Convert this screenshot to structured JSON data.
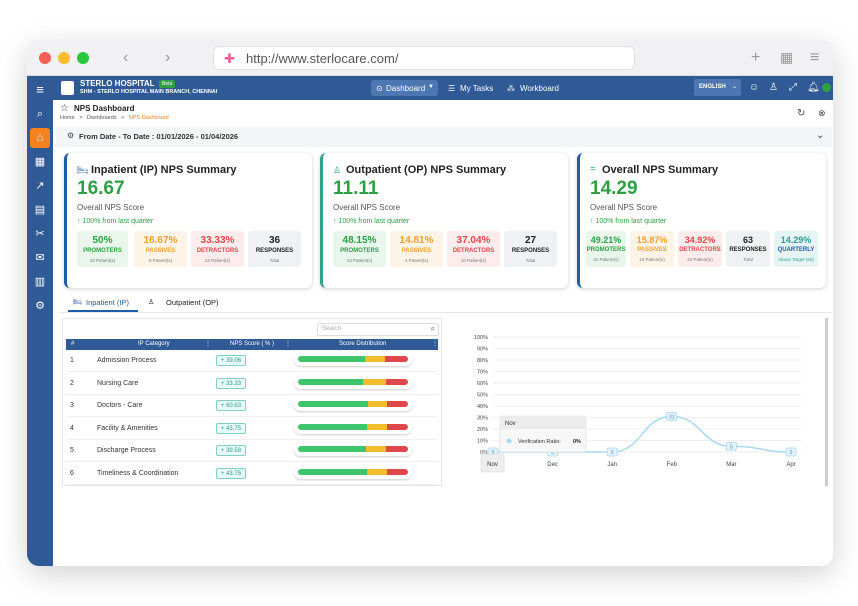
{
  "browser": {
    "url": "http://www.sterlocare.com/"
  },
  "header": {
    "hospital_name": "STERLO HOSPITAL",
    "badge": "Beta",
    "branch": "SHM - STERLO HOSPITAL MAIN BRANCH, CHENNAI",
    "nav": {
      "dashboard": "Dashboard",
      "tasks": "My Tasks",
      "workboard": "Workboard"
    },
    "language": "ENGLISH"
  },
  "page": {
    "title": "NPS Dashboard",
    "breadcrumb": {
      "home": "Home",
      "sep1": ">",
      "dashboards": "Dashboards",
      "sep2": ">",
      "current": "NPS Dashboard"
    },
    "date_filter": "From Date - To Date : 01/01/2026 - 01/04/2026"
  },
  "cards": [
    {
      "title": "Inpatient (IP) NPS Summary",
      "score": "16.67",
      "sub": "Overall NPS Score",
      "change": "↑ 100% from last quarter",
      "promoters": {
        "value": "50%",
        "label": "PROMOTERS",
        "patients": "18 Patient(s)"
      },
      "passives": {
        "value": "16.67%",
        "label": "PASSIVES",
        "patients": "6 Patient(s)"
      },
      "detractors": {
        "value": "33.33%",
        "label": "DETRACTORS",
        "patients": "12 Patient(s)"
      },
      "responses": {
        "value": "36",
        "label": "RESPONSES",
        "patients": "Total"
      }
    },
    {
      "title": "Outpatient (OP) NPS Summary",
      "score": "11.11",
      "sub": "Overall NPS Score",
      "change": "↑ 100% from last quarter",
      "promoters": {
        "value": "48.15%",
        "label": "PROMOTERS",
        "patients": "13 Patient(s)"
      },
      "passives": {
        "value": "14.81%",
        "label": "PASSIVES",
        "patients": "4 Patient(s)"
      },
      "detractors": {
        "value": "37.04%",
        "label": "DETRACTORS",
        "patients": "10 Patient(s)"
      },
      "responses": {
        "value": "27",
        "label": "RESPONSES",
        "patients": "Total"
      }
    },
    {
      "title": "Overall NPS Summary",
      "score": "14.29",
      "sub": "Overall NPS Score",
      "change": "↑ 100% from last quarter",
      "promoters": {
        "value": "49.21%",
        "label": "PROMOTERS",
        "patients": "31 Patient(s)"
      },
      "passives": {
        "value": "15.87%",
        "label": "PASSIVES",
        "patients": "10 Patient(s)"
      },
      "detractors": {
        "value": "34.92%",
        "label": "DETRACTORS",
        "patients": "22 Patient(s)"
      },
      "responses": {
        "value": "63",
        "label": "RESPONSES",
        "patients": "Total"
      },
      "target": {
        "value": "14.29%",
        "label": "QUARTERLY",
        "note": "Above Target (60)"
      }
    }
  ],
  "tabs": {
    "ip": "Inpatient (IP)",
    "op": "Outpatient (OP)"
  },
  "table": {
    "search_placeholder": "Search",
    "headers": {
      "num": "#",
      "category": "IP Category",
      "score": "NPS Score ( % )",
      "dist": "Score Distribution"
    },
    "rows": [
      {
        "num": "1",
        "category": "Admission Process",
        "score": "+ 39.06",
        "promoters": 52,
        "passives": 16,
        "detractors": 18
      },
      {
        "num": "2",
        "category": "Nursing Care",
        "score": "+ 33.33",
        "promoters": 50,
        "passives": 17,
        "detractors": 17
      },
      {
        "num": "3",
        "category": "Doctors - Care",
        "score": "+ 60.63",
        "promoters": 58,
        "passives": 16,
        "detractors": 17
      },
      {
        "num": "4",
        "category": "Facility & Amenities",
        "score": "+ 43.75",
        "promoters": 56,
        "passives": 16,
        "detractors": 17
      },
      {
        "num": "5",
        "category": "Discharge Process",
        "score": "+ 39.58",
        "promoters": 55,
        "passives": 16,
        "detractors": 18
      },
      {
        "num": "6",
        "category": "Timeliness & Coordination",
        "score": "+ 43.75",
        "promoters": 55,
        "passives": 16,
        "detractors": 17
      }
    ]
  },
  "chart_data": {
    "type": "line",
    "categories": [
      "Nov",
      "Dec",
      "Jan",
      "Feb",
      "Mar",
      "Apr"
    ],
    "series": [
      {
        "name": "Verification Ratio",
        "values": [
          0,
          0,
          0,
          31,
          5,
          0
        ]
      }
    ],
    "point_labels": [
      "0",
      "0",
      "0",
      "31",
      "5",
      "0"
    ],
    "yticks": [
      "0%",
      "10%",
      "20%",
      "30%",
      "40%",
      "50%",
      "60%",
      "70%",
      "80%",
      "90%",
      "100%"
    ],
    "ylim": [
      0,
      100
    ],
    "tooltip": {
      "title": "Nov",
      "label": "Verification Ratio:",
      "value": "0%"
    },
    "color": "#a8d8f0"
  }
}
